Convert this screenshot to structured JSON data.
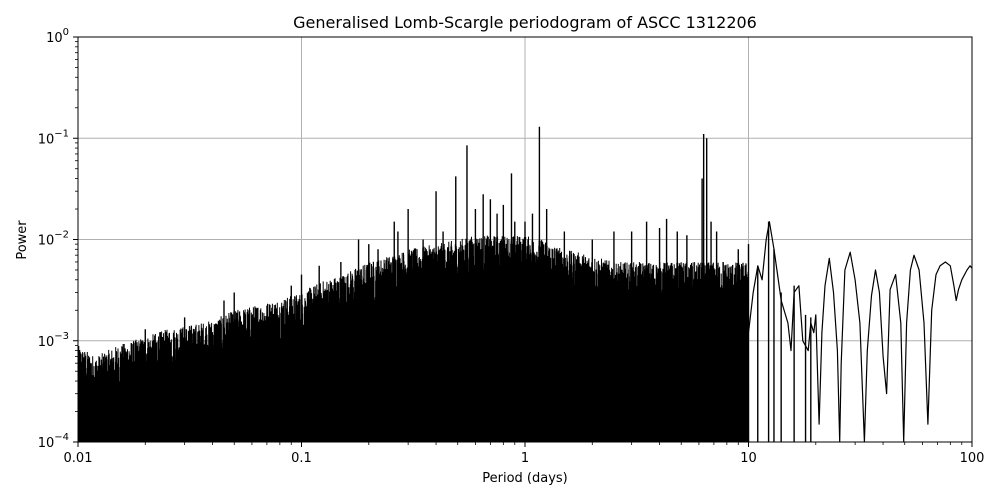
{
  "chart_data": {
    "type": "line",
    "title": "Generalised Lomb-Scargle periodogram of ASCC 1312206",
    "xlabel": "Period (days)",
    "ylabel": "Power",
    "xscale": "log",
    "yscale": "log",
    "xlim": [
      0.01,
      100
    ],
    "ylim": [
      0.0001,
      1
    ],
    "grid": true,
    "x_ticks": [
      {
        "value": 0.01,
        "label": "0.01"
      },
      {
        "value": 0.1,
        "label": "0.1"
      },
      {
        "value": 1,
        "label": "1"
      },
      {
        "value": 10,
        "label": "10"
      },
      {
        "value": 100,
        "label": "100"
      }
    ],
    "y_ticks": [
      {
        "value": 0.0001,
        "base": "10",
        "exp": "−4"
      },
      {
        "value": 0.001,
        "base": "10",
        "exp": "−3"
      },
      {
        "value": 0.01,
        "base": "10",
        "exp": "−2"
      },
      {
        "value": 0.1,
        "base": "10",
        "exp": "−1"
      },
      {
        "value": 1,
        "base": "10",
        "exp": "0"
      }
    ],
    "line_color": "#000000",
    "grid_color": "#b0b0b0",
    "series": [
      {
        "envelope": [
          [
            0.01,
            0.0009
          ],
          [
            0.012,
            0.0007
          ],
          [
            0.015,
            0.0009
          ],
          [
            0.02,
            0.0011
          ],
          [
            0.025,
            0.0013
          ],
          [
            0.03,
            0.0014
          ],
          [
            0.04,
            0.0016
          ],
          [
            0.05,
            0.002
          ],
          [
            0.06,
            0.0022
          ],
          [
            0.08,
            0.0026
          ],
          [
            0.1,
            0.003
          ],
          [
            0.12,
            0.0038
          ],
          [
            0.15,
            0.0045
          ],
          [
            0.2,
            0.006
          ],
          [
            0.25,
            0.007
          ],
          [
            0.3,
            0.008
          ],
          [
            0.4,
            0.009
          ],
          [
            0.5,
            0.01
          ],
          [
            0.6,
            0.011
          ],
          [
            0.8,
            0.011
          ],
          [
            1.0,
            0.011
          ],
          [
            1.2,
            0.01
          ],
          [
            1.5,
            0.008
          ],
          [
            2.0,
            0.007
          ],
          [
            2.5,
            0.006
          ],
          [
            3.0,
            0.006
          ],
          [
            4.0,
            0.006
          ],
          [
            5.0,
            0.006
          ]
        ],
        "peaks": [
          [
            0.02,
            0.0013
          ],
          [
            0.03,
            0.0017
          ],
          [
            0.045,
            0.0025
          ],
          [
            0.05,
            0.003
          ],
          [
            0.09,
            0.0035
          ],
          [
            0.1,
            0.0045
          ],
          [
            0.12,
            0.0055
          ],
          [
            0.15,
            0.006
          ],
          [
            0.18,
            0.01
          ],
          [
            0.2,
            0.009
          ],
          [
            0.22,
            0.008
          ],
          [
            0.26,
            0.015
          ],
          [
            0.27,
            0.012
          ],
          [
            0.3,
            0.02
          ],
          [
            0.35,
            0.01
          ],
          [
            0.4,
            0.03
          ],
          [
            0.43,
            0.012
          ],
          [
            0.49,
            0.042
          ],
          [
            0.55,
            0.085
          ],
          [
            0.6,
            0.02
          ],
          [
            0.65,
            0.028
          ],
          [
            0.7,
            0.025
          ],
          [
            0.75,
            0.018
          ],
          [
            0.8,
            0.022
          ],
          [
            0.87,
            0.045
          ],
          [
            0.9,
            0.015
          ],
          [
            1.0,
            0.015
          ],
          [
            1.08,
            0.018
          ],
          [
            1.16,
            0.13
          ],
          [
            1.25,
            0.02
          ],
          [
            1.5,
            0.012
          ],
          [
            2.0,
            0.01
          ],
          [
            2.5,
            0.012
          ],
          [
            3.0,
            0.012
          ],
          [
            3.5,
            0.015
          ],
          [
            4.0,
            0.013
          ],
          [
            4.3,
            0.016
          ],
          [
            4.8,
            0.012
          ],
          [
            5.3,
            0.011
          ],
          [
            6.2,
            0.04
          ],
          [
            6.3,
            0.11
          ],
          [
            6.5,
            0.1
          ],
          [
            6.8,
            0.015
          ],
          [
            7.2,
            0.012
          ],
          [
            7.7,
            0.006
          ],
          [
            8.3,
            0.004
          ],
          [
            9.0,
            0.008
          ],
          [
            10.0,
            0.009
          ],
          [
            11.0,
            0.0055
          ],
          [
            12.3,
            0.015
          ],
          [
            13.0,
            0.008
          ],
          [
            14.0,
            0.003
          ],
          [
            16.0,
            0.0035
          ],
          [
            18.0,
            0.0018
          ],
          [
            19.0,
            0.0017
          ]
        ],
        "smooth_tail": [
          [
            10.0,
            0.0012
          ],
          [
            10.5,
            0.003
          ],
          [
            11.0,
            0.0055
          ],
          [
            11.5,
            0.004
          ],
          [
            12.0,
            0.01
          ],
          [
            12.4,
            0.015
          ],
          [
            13.0,
            0.008
          ],
          [
            14.0,
            0.0025
          ],
          [
            15.0,
            0.0015
          ],
          [
            15.5,
            0.0008
          ],
          [
            16.0,
            0.003
          ],
          [
            16.8,
            0.0035
          ],
          [
            17.5,
            0.001
          ],
          [
            18.5,
            0.0008
          ],
          [
            19.0,
            0.0015
          ],
          [
            19.6,
            0.0012
          ],
          [
            20.0,
            0.0018
          ],
          [
            20.7,
            0.00015
          ],
          [
            21.3,
            0.0012
          ],
          [
            22.0,
            0.0035
          ],
          [
            23.0,
            0.0065
          ],
          [
            24.0,
            0.003
          ],
          [
            25.0,
            0.0008
          ],
          [
            25.6,
            0.0001
          ],
          [
            26.0,
            0.0006
          ],
          [
            27.0,
            0.005
          ],
          [
            28.5,
            0.0075
          ],
          [
            30.0,
            0.004
          ],
          [
            31.5,
            0.0015
          ],
          [
            33.0,
            0.0001
          ],
          [
            34.0,
            0.0008
          ],
          [
            35.5,
            0.0028
          ],
          [
            37.0,
            0.005
          ],
          [
            38.5,
            0.003
          ],
          [
            40.0,
            0.0007
          ],
          [
            41.5,
            0.0003
          ],
          [
            43.0,
            0.0032
          ],
          [
            45.5,
            0.0045
          ],
          [
            48.0,
            0.0015
          ],
          [
            49.5,
            0.0001
          ],
          [
            51.0,
            0.0015
          ],
          [
            53.0,
            0.005
          ],
          [
            55.0,
            0.007
          ],
          [
            58.0,
            0.005
          ],
          [
            61.0,
            0.0015
          ],
          [
            63.5,
            0.00015
          ],
          [
            66.0,
            0.002
          ],
          [
            69.0,
            0.0045
          ],
          [
            72.0,
            0.0055
          ],
          [
            76.0,
            0.006
          ],
          [
            80.0,
            0.0055
          ],
          [
            83.0,
            0.0035
          ],
          [
            85.0,
            0.0025
          ],
          [
            87.0,
            0.0032
          ],
          [
            90.0,
            0.004
          ],
          [
            95.0,
            0.005
          ],
          [
            98.0,
            0.0055
          ],
          [
            100.0,
            0.0052
          ]
        ]
      }
    ]
  }
}
